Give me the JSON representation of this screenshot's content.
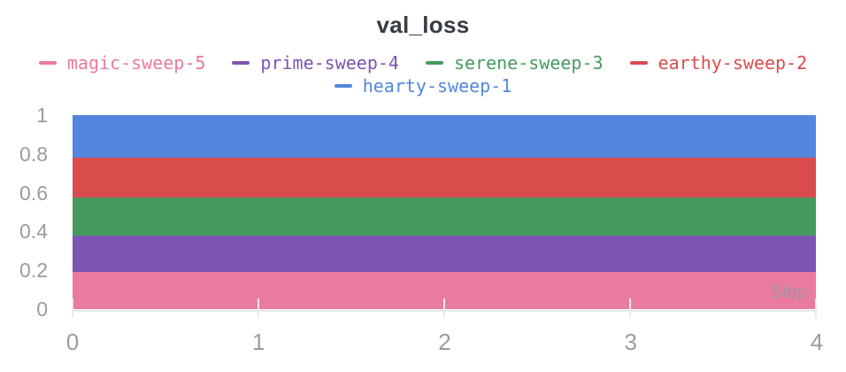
{
  "chart_data": {
    "type": "line",
    "title": "val_loss",
    "xlabel": "Step",
    "ylabel": "",
    "xlim": [
      0,
      4
    ],
    "ylim": [
      0,
      1
    ],
    "x_ticks": [
      0,
      1,
      2,
      3,
      4
    ],
    "y_ticks": [
      0,
      0.2,
      0.4,
      0.6,
      0.8,
      1
    ],
    "grid": "off",
    "legend_position": "top-center-two-rows",
    "series_note": "Each run draws a constant flat line across steps 0-4, rendered as a thick horizontal band; bands stack to fill y 0-1.",
    "series": [
      {
        "name": "magic-sweep-5",
        "color": "#E87B9F",
        "x": [
          0,
          4
        ],
        "y_center": 0.095,
        "y_band": [
          0.0,
          0.19
        ]
      },
      {
        "name": "prime-sweep-4",
        "color": "#7D54B2",
        "x": [
          0,
          4
        ],
        "y_center": 0.285,
        "y_band": [
          0.19,
          0.38
        ]
      },
      {
        "name": "serene-sweep-3",
        "color": "#479A5F",
        "x": [
          0,
          4
        ],
        "y_center": 0.48,
        "y_band": [
          0.38,
          0.575
        ]
      },
      {
        "name": "earthy-sweep-2",
        "color": "#DA4C4C",
        "x": [
          0,
          4
        ],
        "y_center": 0.68,
        "y_band": [
          0.575,
          0.78
        ]
      },
      {
        "name": "hearty-sweep-1",
        "color": "#5387DD",
        "x": [
          0,
          4
        ],
        "y_center": 0.89,
        "y_band": [
          0.78,
          1.0
        ]
      }
    ]
  },
  "axes": {
    "x_tick_labels": [
      "0",
      "1",
      "2",
      "3",
      "4"
    ],
    "y_tick_labels": [
      "0",
      "0.2",
      "0.4",
      "0.6",
      "0.8",
      "1"
    ],
    "x_axis_title": "Step"
  },
  "colors": {
    "title_text": "#373c44",
    "tick_text": "#9b9ba1",
    "axis_line": "#e7e7ea",
    "background": "#ffffff"
  }
}
